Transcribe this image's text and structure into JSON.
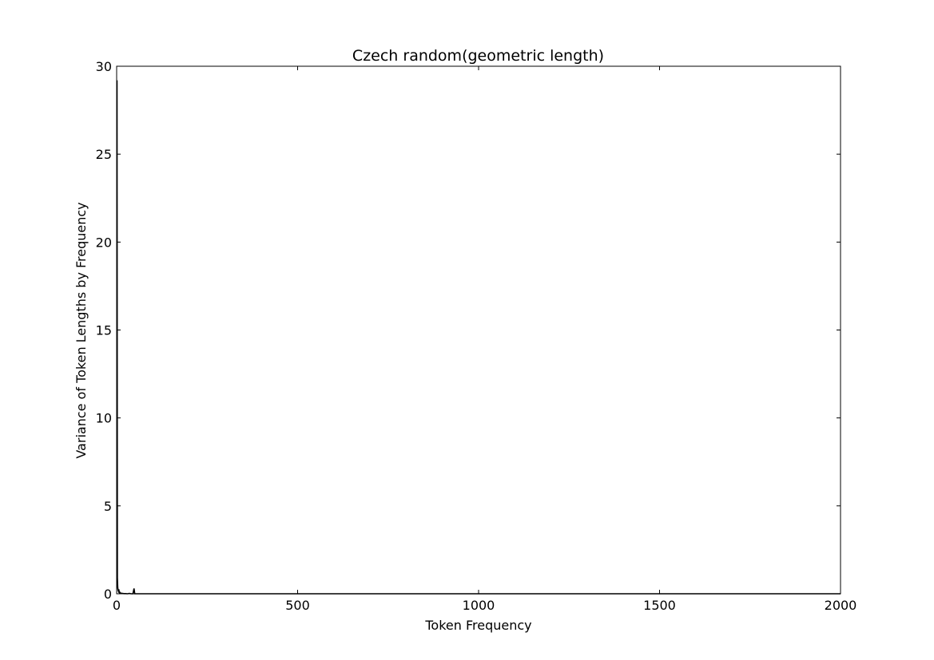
{
  "chart_data": {
    "type": "line",
    "title": "Czech random(geometric length)",
    "xlabel": "Token Frequency",
    "ylabel": "Variance of Token Lengths by Frequency",
    "xlim": [
      0,
      2000
    ],
    "ylim": [
      0,
      30
    ],
    "xticks": [
      0,
      500,
      1000,
      1500,
      2000
    ],
    "xtick_labels": [
      "0",
      "500",
      "1000",
      "1500",
      "2000"
    ],
    "yticks": [
      0,
      5,
      10,
      15,
      20,
      25,
      30
    ],
    "ytick_labels": [
      "0",
      "5",
      "10",
      "15",
      "20",
      "25",
      "30"
    ],
    "grid": false,
    "series": [
      {
        "color": "#000000",
        "x": [
          1,
          2,
          3,
          4,
          5,
          6,
          7,
          8,
          9,
          10,
          11,
          12,
          14,
          16,
          20,
          25,
          30,
          35,
          40,
          45,
          48,
          50,
          60,
          80,
          100,
          150,
          200,
          300,
          400,
          500,
          600,
          700,
          800,
          900,
          1000,
          1200,
          1400,
          1600,
          1800,
          2000
        ],
        "y": [
          29.2,
          0.9,
          0.35,
          0.2,
          0.15,
          0.25,
          0.1,
          0.05,
          0.08,
          0.05,
          0.03,
          0.02,
          0.03,
          0.02,
          0.01,
          0.01,
          0.0,
          0.02,
          0.0,
          0.0,
          0.3,
          0.0,
          0.0,
          0.0,
          0.0,
          0.0,
          0.0,
          0.0,
          0.0,
          0.0,
          0.0,
          0.0,
          0.0,
          0.0,
          0.0,
          0.0,
          0.0,
          0.0,
          0.0,
          0.0
        ]
      }
    ]
  }
}
